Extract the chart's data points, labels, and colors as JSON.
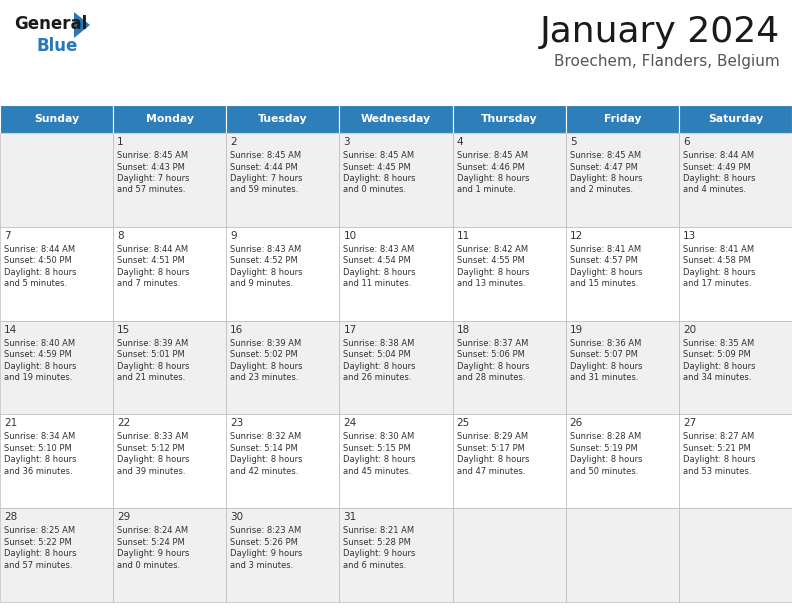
{
  "title": "January 2024",
  "subtitle": "Broechem, Flanders, Belgium",
  "header_color": "#2e7eba",
  "header_text_color": "#ffffff",
  "cell_bg_even": "#f0f0f0",
  "cell_bg_odd": "#ffffff",
  "border_color": "#bbbbbb",
  "text_color": "#333333",
  "day_names": [
    "Sunday",
    "Monday",
    "Tuesday",
    "Wednesday",
    "Thursday",
    "Friday",
    "Saturday"
  ],
  "weeks": [
    [
      {
        "day": "",
        "sunrise": "",
        "sunset": "",
        "daylight": ""
      },
      {
        "day": "1",
        "sunrise": "8:45 AM",
        "sunset": "4:43 PM",
        "daylight": "7 hours\nand 57 minutes."
      },
      {
        "day": "2",
        "sunrise": "8:45 AM",
        "sunset": "4:44 PM",
        "daylight": "7 hours\nand 59 minutes."
      },
      {
        "day": "3",
        "sunrise": "8:45 AM",
        "sunset": "4:45 PM",
        "daylight": "8 hours\nand 0 minutes."
      },
      {
        "day": "4",
        "sunrise": "8:45 AM",
        "sunset": "4:46 PM",
        "daylight": "8 hours\nand 1 minute."
      },
      {
        "day": "5",
        "sunrise": "8:45 AM",
        "sunset": "4:47 PM",
        "daylight": "8 hours\nand 2 minutes."
      },
      {
        "day": "6",
        "sunrise": "8:44 AM",
        "sunset": "4:49 PM",
        "daylight": "8 hours\nand 4 minutes."
      }
    ],
    [
      {
        "day": "7",
        "sunrise": "8:44 AM",
        "sunset": "4:50 PM",
        "daylight": "8 hours\nand 5 minutes."
      },
      {
        "day": "8",
        "sunrise": "8:44 AM",
        "sunset": "4:51 PM",
        "daylight": "8 hours\nand 7 minutes."
      },
      {
        "day": "9",
        "sunrise": "8:43 AM",
        "sunset": "4:52 PM",
        "daylight": "8 hours\nand 9 minutes."
      },
      {
        "day": "10",
        "sunrise": "8:43 AM",
        "sunset": "4:54 PM",
        "daylight": "8 hours\nand 11 minutes."
      },
      {
        "day": "11",
        "sunrise": "8:42 AM",
        "sunset": "4:55 PM",
        "daylight": "8 hours\nand 13 minutes."
      },
      {
        "day": "12",
        "sunrise": "8:41 AM",
        "sunset": "4:57 PM",
        "daylight": "8 hours\nand 15 minutes."
      },
      {
        "day": "13",
        "sunrise": "8:41 AM",
        "sunset": "4:58 PM",
        "daylight": "8 hours\nand 17 minutes."
      }
    ],
    [
      {
        "day": "14",
        "sunrise": "8:40 AM",
        "sunset": "4:59 PM",
        "daylight": "8 hours\nand 19 minutes."
      },
      {
        "day": "15",
        "sunrise": "8:39 AM",
        "sunset": "5:01 PM",
        "daylight": "8 hours\nand 21 minutes."
      },
      {
        "day": "16",
        "sunrise": "8:39 AM",
        "sunset": "5:02 PM",
        "daylight": "8 hours\nand 23 minutes."
      },
      {
        "day": "17",
        "sunrise": "8:38 AM",
        "sunset": "5:04 PM",
        "daylight": "8 hours\nand 26 minutes."
      },
      {
        "day": "18",
        "sunrise": "8:37 AM",
        "sunset": "5:06 PM",
        "daylight": "8 hours\nand 28 minutes."
      },
      {
        "day": "19",
        "sunrise": "8:36 AM",
        "sunset": "5:07 PM",
        "daylight": "8 hours\nand 31 minutes."
      },
      {
        "day": "20",
        "sunrise": "8:35 AM",
        "sunset": "5:09 PM",
        "daylight": "8 hours\nand 34 minutes."
      }
    ],
    [
      {
        "day": "21",
        "sunrise": "8:34 AM",
        "sunset": "5:10 PM",
        "daylight": "8 hours\nand 36 minutes."
      },
      {
        "day": "22",
        "sunrise": "8:33 AM",
        "sunset": "5:12 PM",
        "daylight": "8 hours\nand 39 minutes."
      },
      {
        "day": "23",
        "sunrise": "8:32 AM",
        "sunset": "5:14 PM",
        "daylight": "8 hours\nand 42 minutes."
      },
      {
        "day": "24",
        "sunrise": "8:30 AM",
        "sunset": "5:15 PM",
        "daylight": "8 hours\nand 45 minutes."
      },
      {
        "day": "25",
        "sunrise": "8:29 AM",
        "sunset": "5:17 PM",
        "daylight": "8 hours\nand 47 minutes."
      },
      {
        "day": "26",
        "sunrise": "8:28 AM",
        "sunset": "5:19 PM",
        "daylight": "8 hours\nand 50 minutes."
      },
      {
        "day": "27",
        "sunrise": "8:27 AM",
        "sunset": "5:21 PM",
        "daylight": "8 hours\nand 53 minutes."
      }
    ],
    [
      {
        "day": "28",
        "sunrise": "8:25 AM",
        "sunset": "5:22 PM",
        "daylight": "8 hours\nand 57 minutes."
      },
      {
        "day": "29",
        "sunrise": "8:24 AM",
        "sunset": "5:24 PM",
        "daylight": "9 hours\nand 0 minutes."
      },
      {
        "day": "30",
        "sunrise": "8:23 AM",
        "sunset": "5:26 PM",
        "daylight": "9 hours\nand 3 minutes."
      },
      {
        "day": "31",
        "sunrise": "8:21 AM",
        "sunset": "5:28 PM",
        "daylight": "9 hours\nand 6 minutes."
      },
      {
        "day": "",
        "sunrise": "",
        "sunset": "",
        "daylight": ""
      },
      {
        "day": "",
        "sunrise": "",
        "sunset": "",
        "daylight": ""
      },
      {
        "day": "",
        "sunrise": "",
        "sunset": "",
        "daylight": ""
      }
    ]
  ],
  "logo_text_general": "General",
  "logo_text_blue": "Blue",
  "logo_color_general": "#1a1a1a",
  "logo_color_blue": "#2979b8",
  "logo_triangle_color": "#2979b8",
  "fig_width": 7.92,
  "fig_height": 6.12,
  "dpi": 100
}
